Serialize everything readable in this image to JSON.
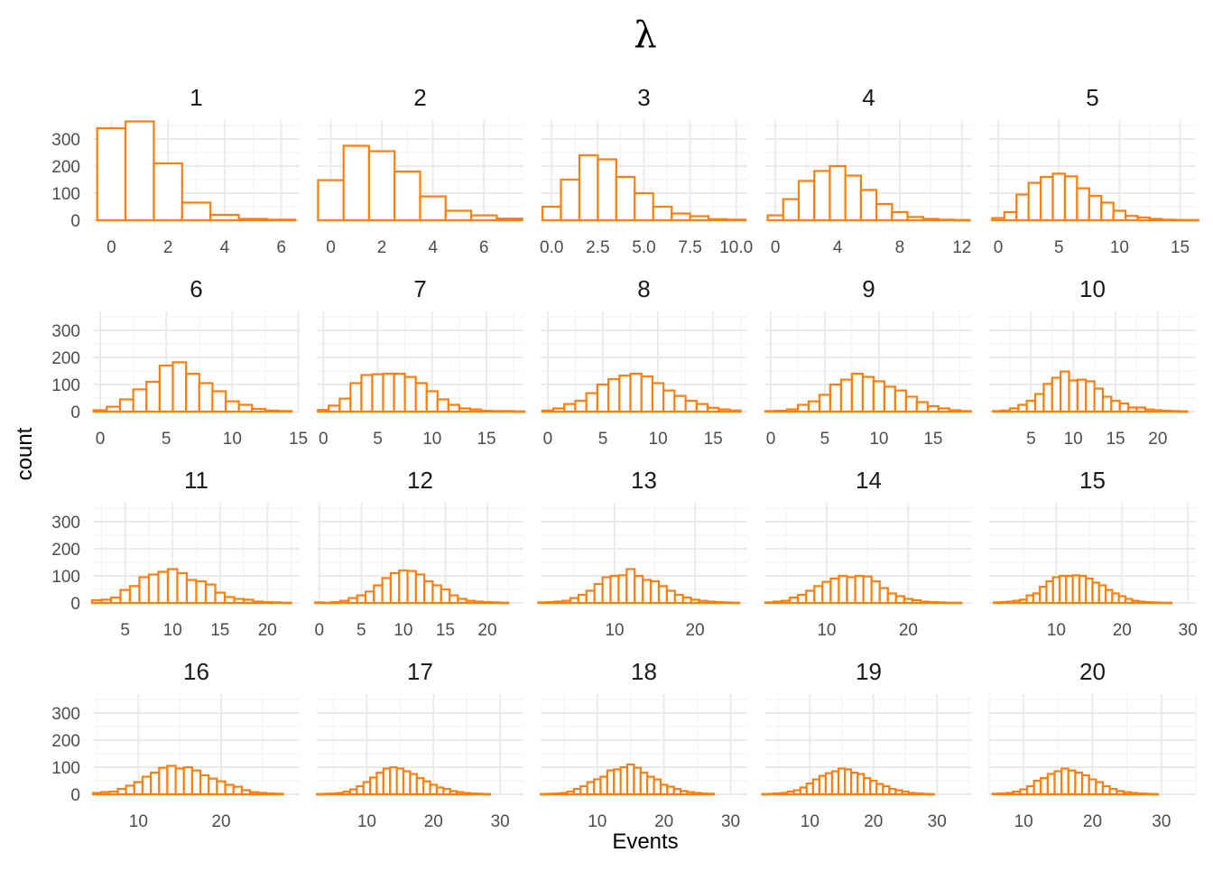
{
  "chart_data": {
    "type": "bar",
    "chart_kind": "faceted-histogram",
    "title": "λ",
    "xlabel": "Events",
    "ylabel": "count",
    "ylim": [
      0,
      370
    ],
    "y_ticks": [
      0,
      100,
      200,
      300
    ],
    "grid": true,
    "bar_outline_color": "#ff7f0e",
    "bar_fill_color": "#ffffff",
    "facets": [
      {
        "label": "1",
        "xlim": [
          -0.65,
          6.65
        ],
        "x_ticks": [
          0,
          2,
          4,
          6
        ],
        "bin_width": 1,
        "bins_start": 0,
        "counts": [
          340,
          365,
          210,
          65,
          20,
          5,
          2
        ]
      },
      {
        "label": "2",
        "xlim": [
          -0.55,
          7.55
        ],
        "x_ticks": [
          0,
          2,
          4,
          6
        ],
        "bin_width": 1,
        "bins_start": 0,
        "counts": [
          148,
          275,
          255,
          180,
          88,
          35,
          18,
          6
        ]
      },
      {
        "label": "3",
        "xlim": [
          -0.6,
          10.6
        ],
        "x_ticks": [
          0,
          2.5,
          5,
          7.5,
          10
        ],
        "x_tick_labels": [
          "0.0",
          "2.5",
          "5.0",
          "7.5",
          "10.0"
        ],
        "bin_width": 1,
        "bins_start": 0,
        "counts": [
          50,
          150,
          240,
          225,
          160,
          100,
          50,
          25,
          15,
          4,
          2
        ]
      },
      {
        "label": "4",
        "xlim": [
          -0.65,
          12.65
        ],
        "x_ticks": [
          0,
          4,
          8,
          12
        ],
        "bin_width": 1,
        "bins_start": 0,
        "counts": [
          18,
          78,
          145,
          182,
          200,
          165,
          112,
          60,
          30,
          12,
          5,
          2,
          1
        ]
      },
      {
        "label": "5",
        "xlim": [
          -0.75,
          16.3
        ],
        "x_ticks": [
          0,
          5,
          10,
          15
        ],
        "bin_width": 1,
        "bins_start": 0,
        "counts": [
          8,
          30,
          95,
          138,
          160,
          172,
          162,
          118,
          90,
          65,
          35,
          16,
          10,
          5,
          2,
          1,
          1
        ]
      },
      {
        "label": "6",
        "xlim": [
          -0.55,
          15.1
        ],
        "x_ticks": [
          0,
          5,
          10,
          15
        ],
        "bin_width": 1,
        "bins_start": 0,
        "counts": [
          5,
          18,
          45,
          82,
          110,
          170,
          182,
          140,
          105,
          75,
          38,
          25,
          10,
          4,
          2
        ]
      },
      {
        "label": "7",
        "xlim": [
          -0.6,
          18.4
        ],
        "x_ticks": [
          0,
          5,
          10,
          15
        ],
        "bin_width": 1,
        "bins_start": 0,
        "counts": [
          6,
          22,
          48,
          105,
          135,
          138,
          140,
          140,
          128,
          105,
          75,
          45,
          25,
          12,
          8,
          3,
          2,
          2,
          1
        ]
      },
      {
        "label": "8",
        "xlim": [
          -0.65,
          18.1
        ],
        "x_ticks": [
          0,
          5,
          10,
          15
        ],
        "bin_width": 1,
        "bins_start": 0,
        "counts": [
          4,
          12,
          28,
          40,
          68,
          100,
          120,
          133,
          140,
          130,
          105,
          78,
          58,
          40,
          28,
          14,
          8,
          4
        ]
      },
      {
        "label": "9",
        "xlim": [
          -0.5,
          18.6
        ],
        "x_ticks": [
          0,
          5,
          10,
          15
        ],
        "bin_width": 1,
        "bins_start": 0,
        "counts": [
          2,
          3,
          8,
          25,
          38,
          62,
          100,
          118,
          140,
          128,
          112,
          92,
          78,
          55,
          35,
          20,
          12,
          5,
          2
        ]
      },
      {
        "label": "10",
        "xlim": [
          0.05,
          24.5
        ],
        "x_ticks": [
          5,
          10,
          15,
          20
        ],
        "bin_width": 1,
        "bins_start": 1,
        "counts": [
          2,
          4,
          12,
          25,
          40,
          65,
          102,
          125,
          148,
          115,
          118,
          112,
          85,
          55,
          40,
          30,
          15,
          15,
          8,
          5,
          3,
          2,
          1
        ]
      },
      {
        "label": "11",
        "xlim": [
          1.6,
          23.4
        ],
        "x_ticks": [
          5,
          10,
          15,
          20
        ],
        "bin_width": 1,
        "bins_start": 2,
        "counts": [
          10,
          12,
          20,
          48,
          62,
          95,
          105,
          115,
          125,
          110,
          85,
          80,
          68,
          38,
          22,
          15,
          12,
          5,
          3,
          2,
          1
        ]
      },
      {
        "label": "12",
        "xlim": [
          -0.3,
          24.3
        ],
        "x_ticks": [
          0,
          5,
          10,
          15,
          20
        ],
        "bin_width": 1,
        "bins_start": 0,
        "counts": [
          2,
          1,
          3,
          8,
          18,
          28,
          42,
          65,
          92,
          110,
          120,
          118,
          105,
          80,
          65,
          50,
          28,
          15,
          8,
          5,
          3,
          2,
          1
        ]
      },
      {
        "label": "13",
        "xlim": [
          0.8,
          26.5
        ],
        "x_ticks": [
          10,
          20
        ],
        "bin_width": 1,
        "bins_start": 1,
        "counts": [
          2,
          3,
          5,
          8,
          18,
          30,
          45,
          70,
          95,
          100,
          102,
          125,
          100,
          85,
          80,
          62,
          45,
          30,
          20,
          12,
          8,
          5,
          3,
          2,
          1
        ]
      },
      {
        "label": "14",
        "xlim": [
          2.5,
          27.8
        ],
        "x_ticks": [
          10,
          20
        ],
        "bin_width": 1,
        "bins_start": 3,
        "counts": [
          2,
          5,
          8,
          20,
          30,
          45,
          62,
          78,
          90,
          100,
          95,
          100,
          98,
          80,
          55,
          35,
          25,
          15,
          10,
          5,
          3,
          2,
          1,
          1
        ]
      },
      {
        "label": "15",
        "xlim": [
          -0.2,
          31.2
        ],
        "x_ticks": [
          10,
          20,
          30
        ],
        "bin_width": 1,
        "bins_start": 1,
        "counts": [
          2,
          3,
          5,
          8,
          12,
          28,
          35,
          60,
          80,
          95,
          100,
          100,
          102,
          100,
          90,
          75,
          65,
          48,
          35,
          25,
          15,
          8,
          5,
          3,
          2,
          1,
          1
        ]
      },
      {
        "label": "16",
        "xlim": [
          4.5,
          29.5
        ],
        "x_ticks": [
          10,
          20
        ],
        "bin_width": 1,
        "bins_start": 5,
        "counts": [
          5,
          8,
          10,
          20,
          32,
          45,
          65,
          80,
          98,
          105,
          95,
          100,
          88,
          70,
          58,
          48,
          35,
          28,
          15,
          8,
          5,
          3,
          2
        ]
      },
      {
        "label": "17",
        "xlim": [
          2.5,
          33.5
        ],
        "x_ticks": [
          10,
          20,
          30
        ],
        "bin_width": 1,
        "bins_start": 3,
        "counts": [
          1,
          2,
          3,
          5,
          10,
          18,
          30,
          45,
          62,
          80,
          95,
          100,
          95,
          85,
          75,
          60,
          48,
          35,
          25,
          20,
          12,
          8,
          5,
          3,
          2,
          1
        ]
      },
      {
        "label": "18",
        "xlim": [
          1.5,
          32.5
        ],
        "x_ticks": [
          10,
          20,
          30
        ],
        "bin_width": 1,
        "bins_start": 2,
        "counts": [
          1,
          2,
          3,
          5,
          10,
          20,
          30,
          45,
          55,
          65,
          88,
          92,
          100,
          110,
          98,
          80,
          65,
          55,
          35,
          28,
          20,
          12,
          8,
          5,
          3,
          2
        ]
      },
      {
        "label": "19",
        "xlim": [
          3.0,
          35.5
        ],
        "x_ticks": [
          10,
          20,
          30
        ],
        "bin_width": 1,
        "bins_start": 3,
        "counts": [
          1,
          2,
          3,
          5,
          10,
          15,
          25,
          40,
          55,
          68,
          78,
          85,
          95,
          92,
          80,
          75,
          60,
          50,
          38,
          30,
          20,
          15,
          10,
          5,
          3,
          2,
          1
        ]
      },
      {
        "label": "20",
        "xlim": [
          5.0,
          35.0
        ],
        "x_ticks": [
          10,
          20,
          30
        ],
        "bin_width": 1,
        "bins_start": 6,
        "counts": [
          2,
          3,
          5,
          10,
          18,
          30,
          50,
          60,
          75,
          85,
          95,
          88,
          80,
          70,
          55,
          45,
          30,
          20,
          12,
          8,
          5,
          3,
          2,
          1
        ]
      }
    ]
  }
}
